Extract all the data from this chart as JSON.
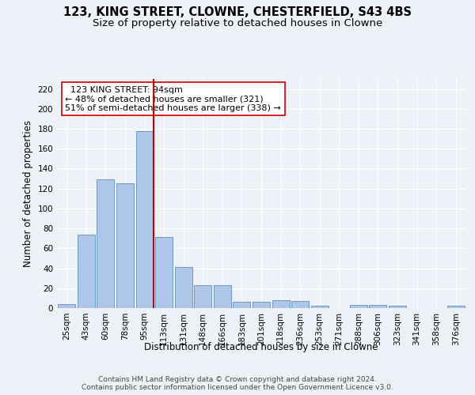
{
  "title1": "123, KING STREET, CLOWNE, CHESTERFIELD, S43 4BS",
  "title2": "Size of property relative to detached houses in Clowne",
  "xlabel": "Distribution of detached houses by size in Clowne",
  "ylabel": "Number of detached properties",
  "categories": [
    "25sqm",
    "43sqm",
    "60sqm",
    "78sqm",
    "95sqm",
    "113sqm",
    "131sqm",
    "148sqm",
    "166sqm",
    "183sqm",
    "201sqm",
    "218sqm",
    "236sqm",
    "253sqm",
    "271sqm",
    "288sqm",
    "306sqm",
    "323sqm",
    "341sqm",
    "358sqm",
    "376sqm"
  ],
  "values": [
    4,
    74,
    129,
    125,
    178,
    71,
    41,
    23,
    23,
    6,
    6,
    8,
    7,
    2,
    0,
    3,
    3,
    2,
    0,
    0,
    2
  ],
  "bar_color": "#aec6e8",
  "bar_edge_color": "#5a8fc0",
  "vline_color": "#cc0000",
  "annotation_text": "  123 KING STREET: 94sqm\n← 48% of detached houses are smaller (321)\n51% of semi-detached houses are larger (338) →",
  "annotation_box_color": "#ffffff",
  "annotation_box_edge": "#cc0000",
  "ylim": [
    0,
    230
  ],
  "yticks": [
    0,
    20,
    40,
    60,
    80,
    100,
    120,
    140,
    160,
    180,
    200,
    220
  ],
  "footnote": "Contains HM Land Registry data © Crown copyright and database right 2024.\nContains public sector information licensed under the Open Government Licence v3.0.",
  "background_color": "#eef2f8",
  "grid_color": "#ffffff",
  "title_fontsize": 10.5,
  "subtitle_fontsize": 9.5,
  "axis_label_fontsize": 8.5,
  "tick_fontsize": 7.5,
  "annotation_fontsize": 8,
  "footnote_fontsize": 6.5
}
